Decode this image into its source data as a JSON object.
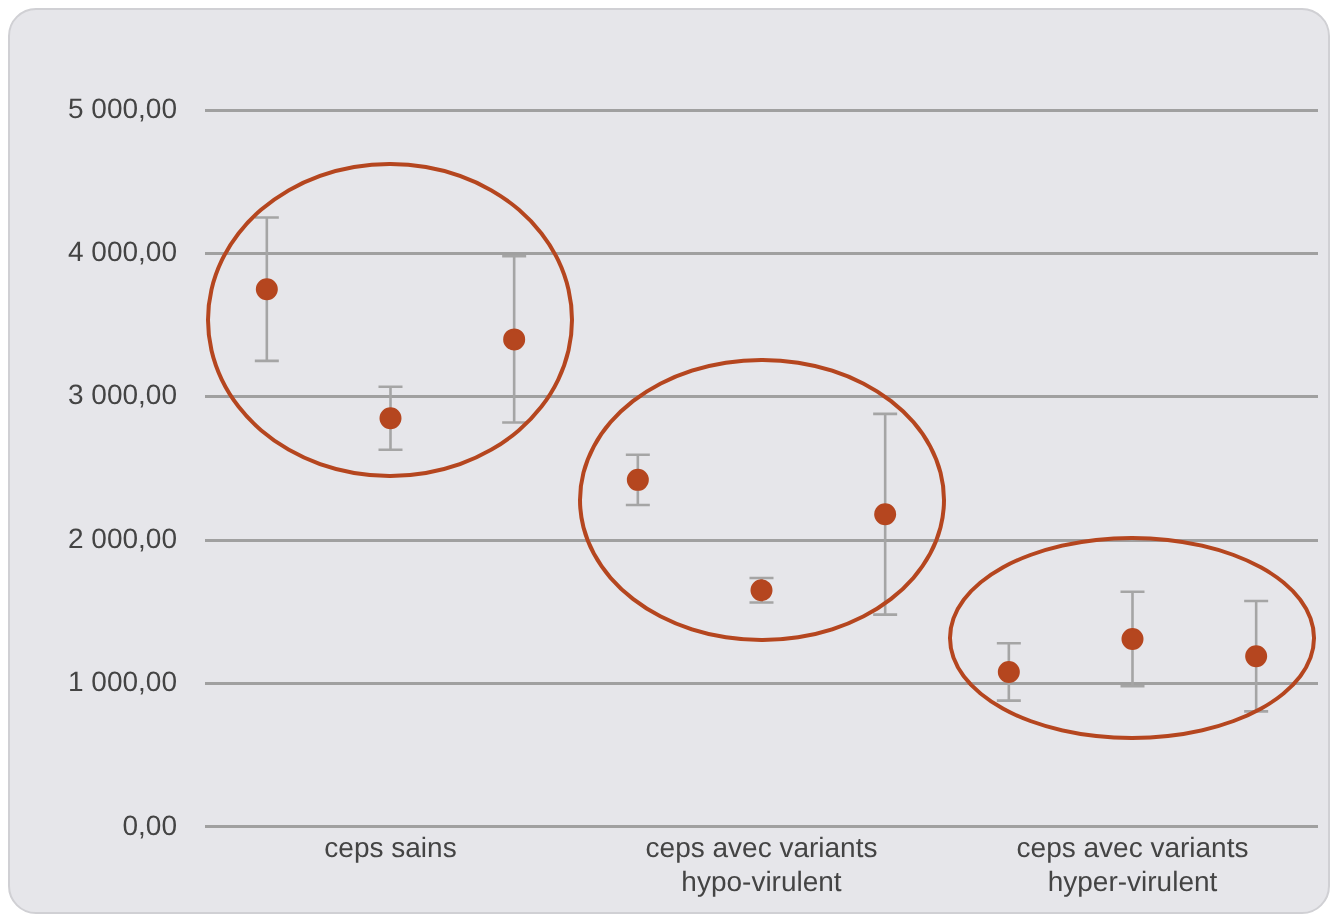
{
  "chart_data": {
    "type": "scatter",
    "categories": [
      null,
      "ceps sains",
      null,
      null,
      "ceps avec variants\nhypo-virulent",
      null,
      null,
      "ceps avec variants\nhyper-virulent",
      null
    ],
    "values": [
      3750,
      2850,
      3400,
      2420,
      1650,
      2180,
      1080,
      1310,
      1190
    ],
    "errors": [
      500,
      220,
      580,
      175,
      85,
      700,
      200,
      330,
      385
    ],
    "color": "#b5461f",
    "ylim": [
      0,
      5000
    ],
    "yticks": [
      {
        "value": 0,
        "label": "0,00"
      },
      {
        "value": 1000,
        "label": "1 000,00"
      },
      {
        "value": 2000,
        "label": "2 000,00"
      },
      {
        "value": 3000,
        "label": "3 000,00"
      },
      {
        "value": 4000,
        "label": "4 000,00"
      },
      {
        "value": 5000,
        "label": "5 000,00"
      }
    ],
    "grid": "y",
    "legend": false,
    "marker": "circle"
  }
}
